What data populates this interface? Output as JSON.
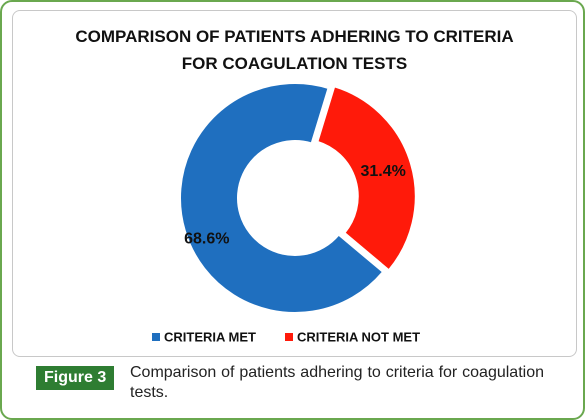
{
  "chart_data": {
    "type": "donut",
    "title": "COMPARISON OF PATIENTS ADHERING TO CRITERIA FOR COAGULATION TESTS",
    "categories": [
      "CRITERIA MET",
      "CRITERIA NOT MET"
    ],
    "values": [
      68.6,
      31.4
    ],
    "value_labels": [
      "68.6%",
      "31.4%"
    ],
    "colors": [
      "#1f6fbf",
      "#ff1a0a"
    ],
    "legend": "bottom"
  },
  "caption": {
    "label": "Figure 3",
    "text": "Comparison of patients adhering to criteria for coagulation tests."
  }
}
